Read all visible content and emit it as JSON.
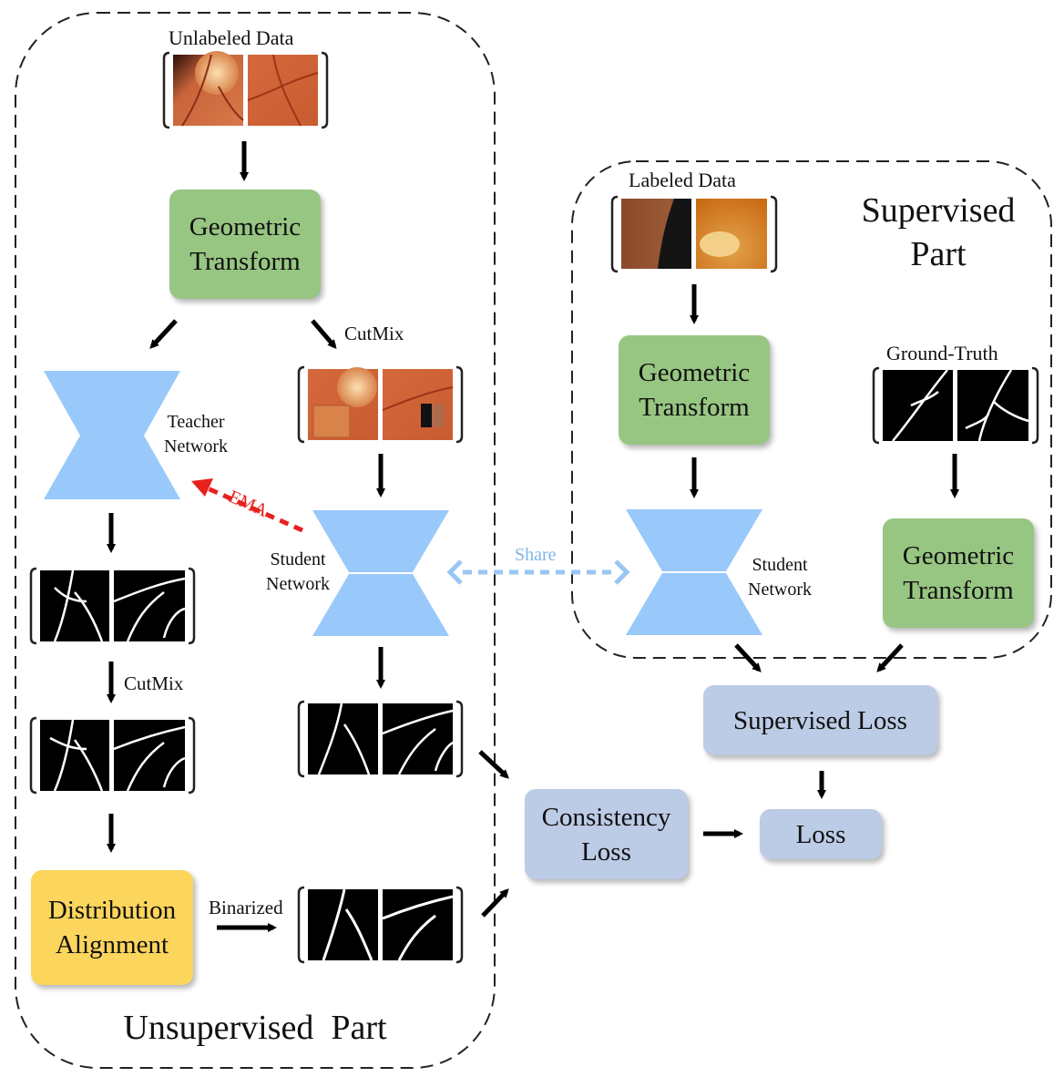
{
  "unsupervised": {
    "title": "Unsupervised  Part",
    "unlabeled_data_label": "Unlabeled Data",
    "geometric_transform": "Geometric\nTransform",
    "cutmix_top": "CutMix",
    "teacher_network": "Teacher\nNetwork",
    "student_network": "Student\nNetwork",
    "ema": "EMA",
    "cutmix_bottom": "CutMix",
    "distribution_alignment": "Distribution\nAlignment",
    "binarized": "Binarized"
  },
  "supervised": {
    "title": "Supervised\nPart",
    "labeled_data_label": "Labeled Data",
    "geometric_transform": "Geometric\nTransform",
    "ground_truth_label": "Ground-Truth",
    "gt_geometric_transform": "Geometric\nTransform",
    "student_network": "Student\nNetwork"
  },
  "share_label": "Share",
  "losses": {
    "supervised_loss": "Supervised Loss",
    "consistency_loss": "Consistency\nLoss",
    "loss": "Loss"
  },
  "colors": {
    "transform_box": "#97c682",
    "loss_box": "#bccbe6",
    "alignment_box": "#fcd55c",
    "network": "#99c9fb",
    "ema_arrow": "#e8211f",
    "share_arrow": "#99c6f2",
    "fundus_image": "#c9643a",
    "vessel_mask": "#000000"
  }
}
